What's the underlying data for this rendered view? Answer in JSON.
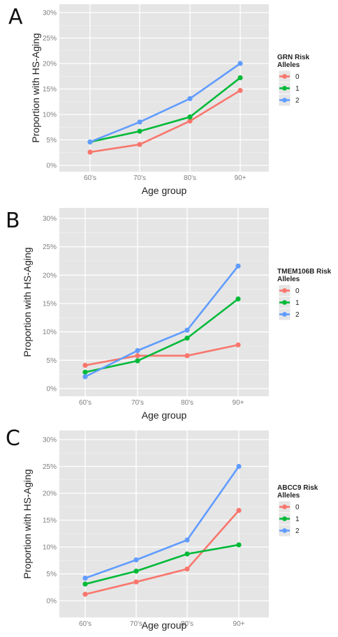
{
  "chart_data": [
    {
      "panel": "A",
      "type": "line",
      "categories": [
        "60's",
        "70's",
        "80's",
        "90+"
      ],
      "xlabel": "Age group",
      "ylabel": "Proportion with HS-Aging",
      "yticks": [
        "0%",
        "5%",
        "10%",
        "15%",
        "20%",
        "25%",
        "30%"
      ],
      "ylim": [
        0,
        0.31
      ],
      "legend_title": [
        "GRN Risk",
        "Alleles"
      ],
      "grid": true,
      "legend_position": "right",
      "series": [
        {
          "name": "0",
          "color": "#f8766d",
          "values": [
            0.026,
            0.041,
            0.087,
            0.147
          ]
        },
        {
          "name": "1",
          "color": "#00ba38",
          "values": [
            0.046,
            0.067,
            0.095,
            0.172
          ]
        },
        {
          "name": "2",
          "color": "#619cff",
          "values": [
            0.046,
            0.085,
            0.131,
            0.2
          ]
        }
      ]
    },
    {
      "panel": "B",
      "type": "line",
      "categories": [
        "60's",
        "70's",
        "80's",
        "90+"
      ],
      "xlabel": "Age group",
      "ylabel": "Proportion with HS-Aging",
      "yticks": [
        "0%",
        "5%",
        "10%",
        "15%",
        "20%",
        "25%",
        "30%"
      ],
      "ylim": [
        0,
        0.31
      ],
      "legend_title": [
        "TMEM106B Risk",
        "Alleles"
      ],
      "grid": true,
      "legend_position": "right",
      "series": [
        {
          "name": "0",
          "color": "#f8766d",
          "values": [
            0.041,
            0.058,
            0.058,
            0.077
          ]
        },
        {
          "name": "1",
          "color": "#00ba38",
          "values": [
            0.029,
            0.049,
            0.089,
            0.158
          ]
        },
        {
          "name": "2",
          "color": "#619cff",
          "values": [
            0.021,
            0.067,
            0.103,
            0.216
          ]
        }
      ]
    },
    {
      "panel": "C",
      "type": "line",
      "categories": [
        "60's",
        "70's",
        "80's",
        "90+"
      ],
      "xlabel": "Age group",
      "ylabel": "Proportion with HS-Aging",
      "yticks": [
        "0%",
        "5%",
        "10%",
        "15%",
        "20%",
        "25%",
        "30%"
      ],
      "ylim": [
        0,
        0.31
      ],
      "legend_title": [
        "ABCC9 Risk",
        "Alleles"
      ],
      "grid": true,
      "legend_position": "right",
      "series": [
        {
          "name": "0",
          "color": "#f8766d",
          "values": [
            0.012,
            0.035,
            0.059,
            0.168
          ]
        },
        {
          "name": "1",
          "color": "#00ba38",
          "values": [
            0.031,
            0.055,
            0.087,
            0.104
          ]
        },
        {
          "name": "2",
          "color": "#619cff",
          "values": [
            0.042,
            0.076,
            0.113,
            0.25
          ]
        }
      ]
    }
  ]
}
